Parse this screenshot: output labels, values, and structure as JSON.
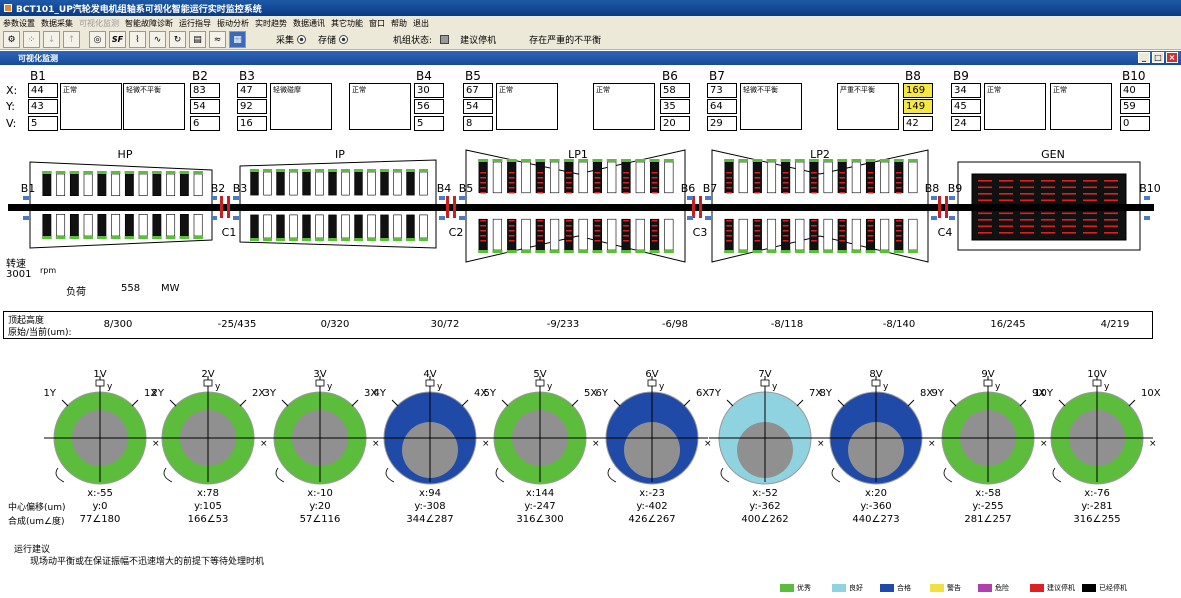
{
  "window": {
    "title": "BCT101_UP汽轮发电机组轴系可视化智能运行实时监控系统"
  },
  "menu": [
    {
      "label": "参数设置",
      "disabled": false
    },
    {
      "label": "数据采集",
      "disabled": false
    },
    {
      "label": "可视化监测",
      "disabled": true
    },
    {
      "label": "智能故障诊断",
      "disabled": false
    },
    {
      "label": "运行指导",
      "disabled": false
    },
    {
      "label": "振动分析",
      "disabled": false
    },
    {
      "label": "实时趋势",
      "disabled": false
    },
    {
      "label": "数据通讯",
      "disabled": false
    },
    {
      "label": "其它功能",
      "disabled": false
    },
    {
      "label": "窗口",
      "disabled": false
    },
    {
      "label": "帮助",
      "disabled": false
    },
    {
      "label": "退出",
      "disabled": false
    }
  ],
  "toolbar": {
    "sample_label": "采集",
    "store_label": "存储",
    "unit_state_label": "机组状态:",
    "unit_state_value": "建议停机",
    "unit_state_msg": "存在严重的不平衡",
    "sf_label": "SF"
  },
  "subwindow": {
    "title": "可视化监测"
  },
  "bearings": [
    {
      "id": "B1",
      "x": "44",
      "y": "43",
      "v": "5"
    },
    {
      "id": "B2",
      "x": "83",
      "y": "54",
      "v": "6"
    },
    {
      "id": "B3",
      "x": "47",
      "y": "92",
      "v": "16"
    },
    {
      "id": "B4",
      "x": "30",
      "y": "56",
      "v": "5"
    },
    {
      "id": "B5",
      "x": "67",
      "y": "54",
      "v": "8"
    },
    {
      "id": "B6",
      "x": "58",
      "y": "35",
      "v": "20"
    },
    {
      "id": "B7",
      "x": "73",
      "y": "64",
      "v": "29"
    },
    {
      "id": "B8",
      "x": "169",
      "y": "149",
      "v": "42"
    },
    {
      "id": "B9",
      "x": "34",
      "y": "45",
      "v": "24"
    },
    {
      "id": "B10",
      "x": "40",
      "y": "59",
      "v": "0"
    }
  ],
  "axis_labels": {
    "x": "X:",
    "y": "Y:",
    "v": "V:"
  },
  "notes": [
    "正常",
    "轻微不平衡",
    "轻微碰摩",
    "正常",
    "正常",
    "正常",
    "轻微不平衡",
    "严重不平衡",
    "正常",
    "正常"
  ],
  "sections": [
    "HP",
    "IP",
    "LP1",
    "LP2",
    "GEN"
  ],
  "shaft_bearing_labels": [
    "B1",
    "B2",
    "B3",
    "B4",
    "B5",
    "B6",
    "B7",
    "B8",
    "B9",
    "B10"
  ],
  "couplings": [
    "C1",
    "C2",
    "C3",
    "C4"
  ],
  "speed": {
    "label": "转速",
    "value": "3001",
    "unit": "rpm"
  },
  "load": {
    "label": "负荷",
    "value": "558",
    "unit": "MW"
  },
  "lift": {
    "label1": "顶起高度",
    "label2": "原始/当前(um):",
    "values": [
      "8/300",
      "-25/435",
      "0/320",
      "30/72",
      "-9/233",
      "-6/98",
      "-8/118",
      "-8/140",
      "16/245",
      "4/219"
    ]
  },
  "gauges": [
    {
      "v": "1V",
      "x": "1X",
      "y": "1Y",
      "color": "#5cbd3c",
      "cx": "x:-55",
      "cy": "y:0",
      "res": "77∠180"
    },
    {
      "v": "2V",
      "x": "2X",
      "y": "2Y",
      "color": "#5cbd3c",
      "cx": "x:78",
      "cy": "y:105",
      "res": "166∠53"
    },
    {
      "v": "3V",
      "x": "3X",
      "y": "3Y",
      "color": "#5cbd3c",
      "cx": "x:-10",
      "cy": "y:20",
      "res": "57∠116"
    },
    {
      "v": "4V",
      "x": "4X",
      "y": "4Y",
      "color": "#1f4aa8",
      "cx": "x:94",
      "cy": "y:-308",
      "res": "344∠287"
    },
    {
      "v": "5V",
      "x": "5X",
      "y": "5Y",
      "color": "#5cbd3c",
      "cx": "x:144",
      "cy": "y:-247",
      "res": "316∠300"
    },
    {
      "v": "6V",
      "x": "6X",
      "y": "6Y",
      "color": "#1f4aa8",
      "cx": "x:-23",
      "cy": "y:-402",
      "res": "426∠267"
    },
    {
      "v": "7V",
      "x": "7X",
      "y": "7Y",
      "color": "#8fd3e0",
      "cx": "x:-52",
      "cy": "y:-362",
      "res": "400∠262"
    },
    {
      "v": "8V",
      "x": "8X",
      "y": "8Y",
      "color": "#1f4aa8",
      "cx": "x:20",
      "cy": "y:-360",
      "res": "440∠273"
    },
    {
      "v": "9V",
      "x": "9X",
      "y": "9Y",
      "color": "#5cbd3c",
      "cx": "x:-58",
      "cy": "y:-255",
      "res": "281∠257"
    },
    {
      "v": "10V",
      "x": "10X",
      "y": "10Y",
      "color": "#5cbd3c",
      "cx": "x:-76",
      "cy": "y:-281",
      "res": "316∠255"
    }
  ],
  "center_offset": {
    "label1": "中心偏移(um)",
    "label2": "合成(um∠度)"
  },
  "advice": {
    "title": "运行建议",
    "text": "现场动平衡或在保证振幅不迅速增大的前提下等待处理时机"
  },
  "legend": [
    {
      "label": "优秀",
      "color": "#5cbd3c"
    },
    {
      "label": "良好",
      "color": "#8fd3e0"
    },
    {
      "label": "合格",
      "color": "#1f4aa8"
    },
    {
      "label": "警告",
      "color": "#f0e040"
    },
    {
      "label": "危险",
      "color": "#b040b0"
    },
    {
      "label": "建议停机",
      "color": "#e02020"
    },
    {
      "label": "已经停机",
      "color": "#000000"
    }
  ]
}
